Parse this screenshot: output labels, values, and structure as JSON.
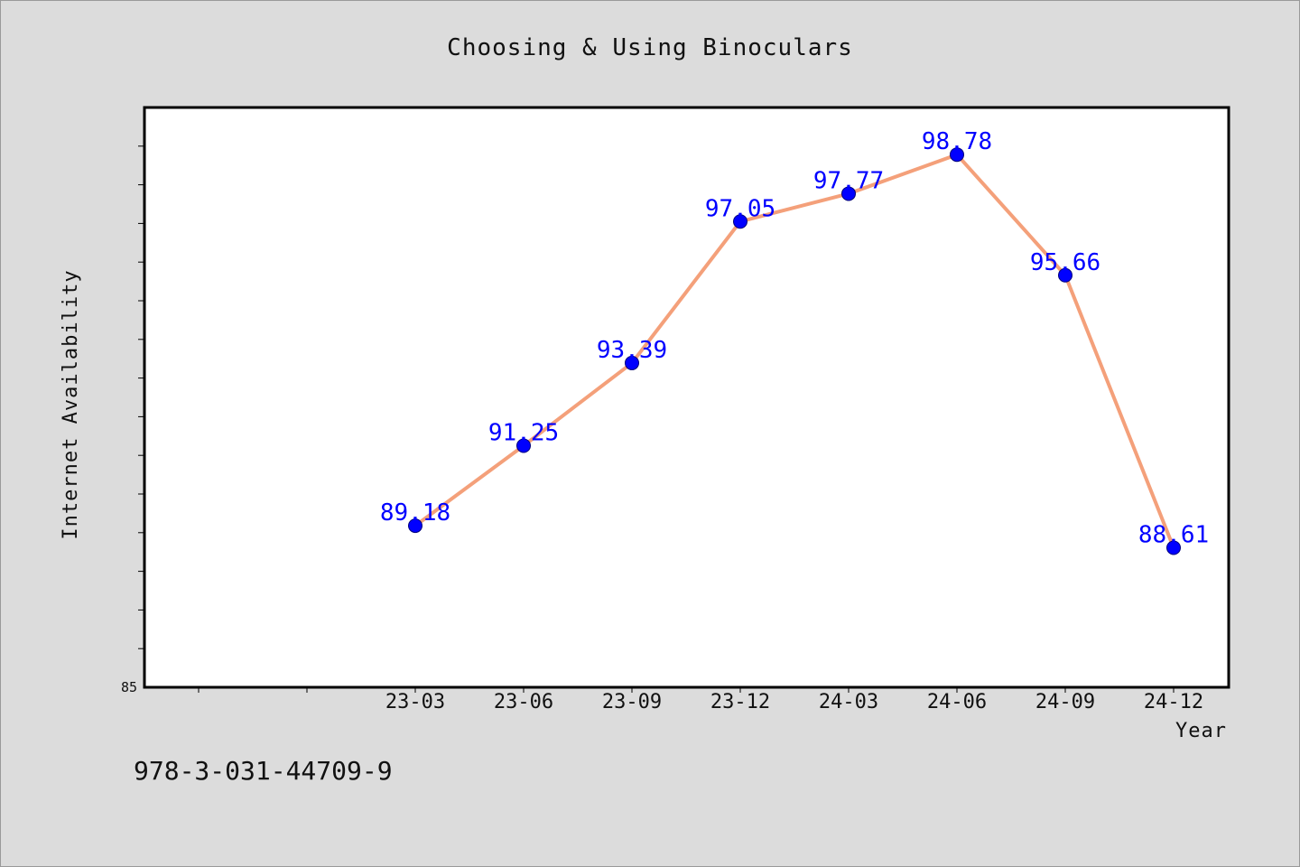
{
  "chart_data": {
    "type": "line",
    "title": "Choosing & Using Binoculars",
    "xlabel": "Year",
    "ylabel": "Internet Availability",
    "categories": [
      "23-03",
      "23-06",
      "23-09",
      "23-12",
      "24-03",
      "24-06",
      "24-09",
      "24-12"
    ],
    "series": [
      {
        "values": [
          89.18,
          91.25,
          93.39,
          97.05,
          97.77,
          98.78,
          95.66,
          88.61
        ],
        "line_color": "#f4a07a",
        "marker_color": "#0000ff"
      }
    ],
    "data_labels": [
      "89.18",
      "91.25",
      "93.39",
      "97.05",
      "97.77",
      "98.78",
      "95.66",
      "88.61"
    ],
    "ylim": [
      85,
      100
    ],
    "y_tick_labels": [
      "85"
    ],
    "grid": false,
    "legend": "none"
  },
  "footer": {
    "isbn": "978-3-031-44709-9"
  },
  "colors": {
    "background": "#dcdcdc",
    "plot_background": "#ffffff",
    "data_label": "#0000ff"
  }
}
